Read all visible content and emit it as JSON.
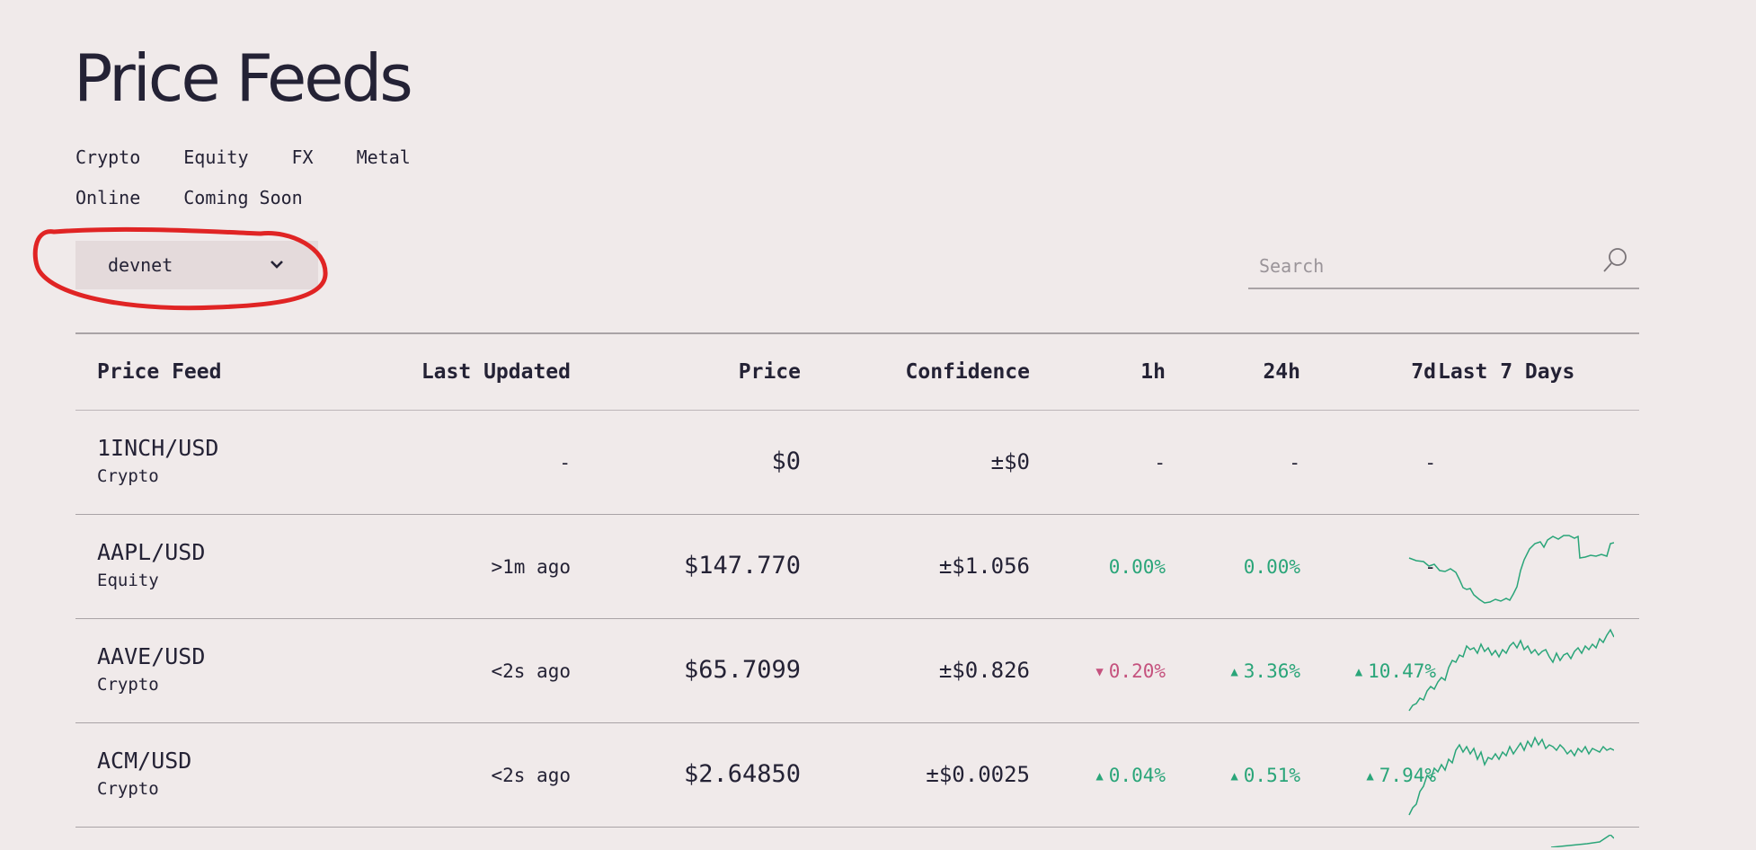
{
  "page": {
    "title": "Price Feeds"
  },
  "filters": {
    "categories": [
      "Crypto",
      "Equity",
      "FX",
      "Metal"
    ],
    "statuses": [
      "Online",
      "Coming Soon"
    ]
  },
  "network": {
    "selected": "devnet"
  },
  "search": {
    "placeholder": "Search",
    "value": ""
  },
  "table": {
    "headers": {
      "price_feed": "Price Feed",
      "last_updated": "Last Updated",
      "price": "Price",
      "confidence": "Confidence",
      "h1": "1h",
      "h24": "24h",
      "d7": "7d",
      "last7": "Last 7 Days"
    },
    "rows": [
      {
        "symbol": "1INCH/USD",
        "category": "Crypto",
        "last_updated": "-",
        "price": "$0",
        "confidence": "±$0",
        "h1": "-",
        "h24": "-",
        "d7": "-"
      },
      {
        "symbol": "AAPL/USD",
        "category": "Equity",
        "last_updated": ">1m ago",
        "price": "$147.770",
        "confidence": "±$1.056",
        "h1": "0.00%",
        "h24": "0.00%",
        "d7": "-"
      },
      {
        "symbol": "AAVE/USD",
        "category": "Crypto",
        "last_updated": "<2s ago",
        "price": "$65.7099",
        "confidence": "±$0.826",
        "h1": "0.20%",
        "h24": "3.36%",
        "d7": "10.47%"
      },
      {
        "symbol": "ACM/USD",
        "category": "Crypto",
        "last_updated": "<2s ago",
        "price": "$2.64850",
        "confidence": "±$0.0025",
        "h1": "0.04%",
        "h24": "0.51%",
        "d7": "7.94%"
      }
    ]
  },
  "colors": {
    "up": "#2aa579",
    "down": "#c5527e",
    "annotation": "#e02424"
  }
}
